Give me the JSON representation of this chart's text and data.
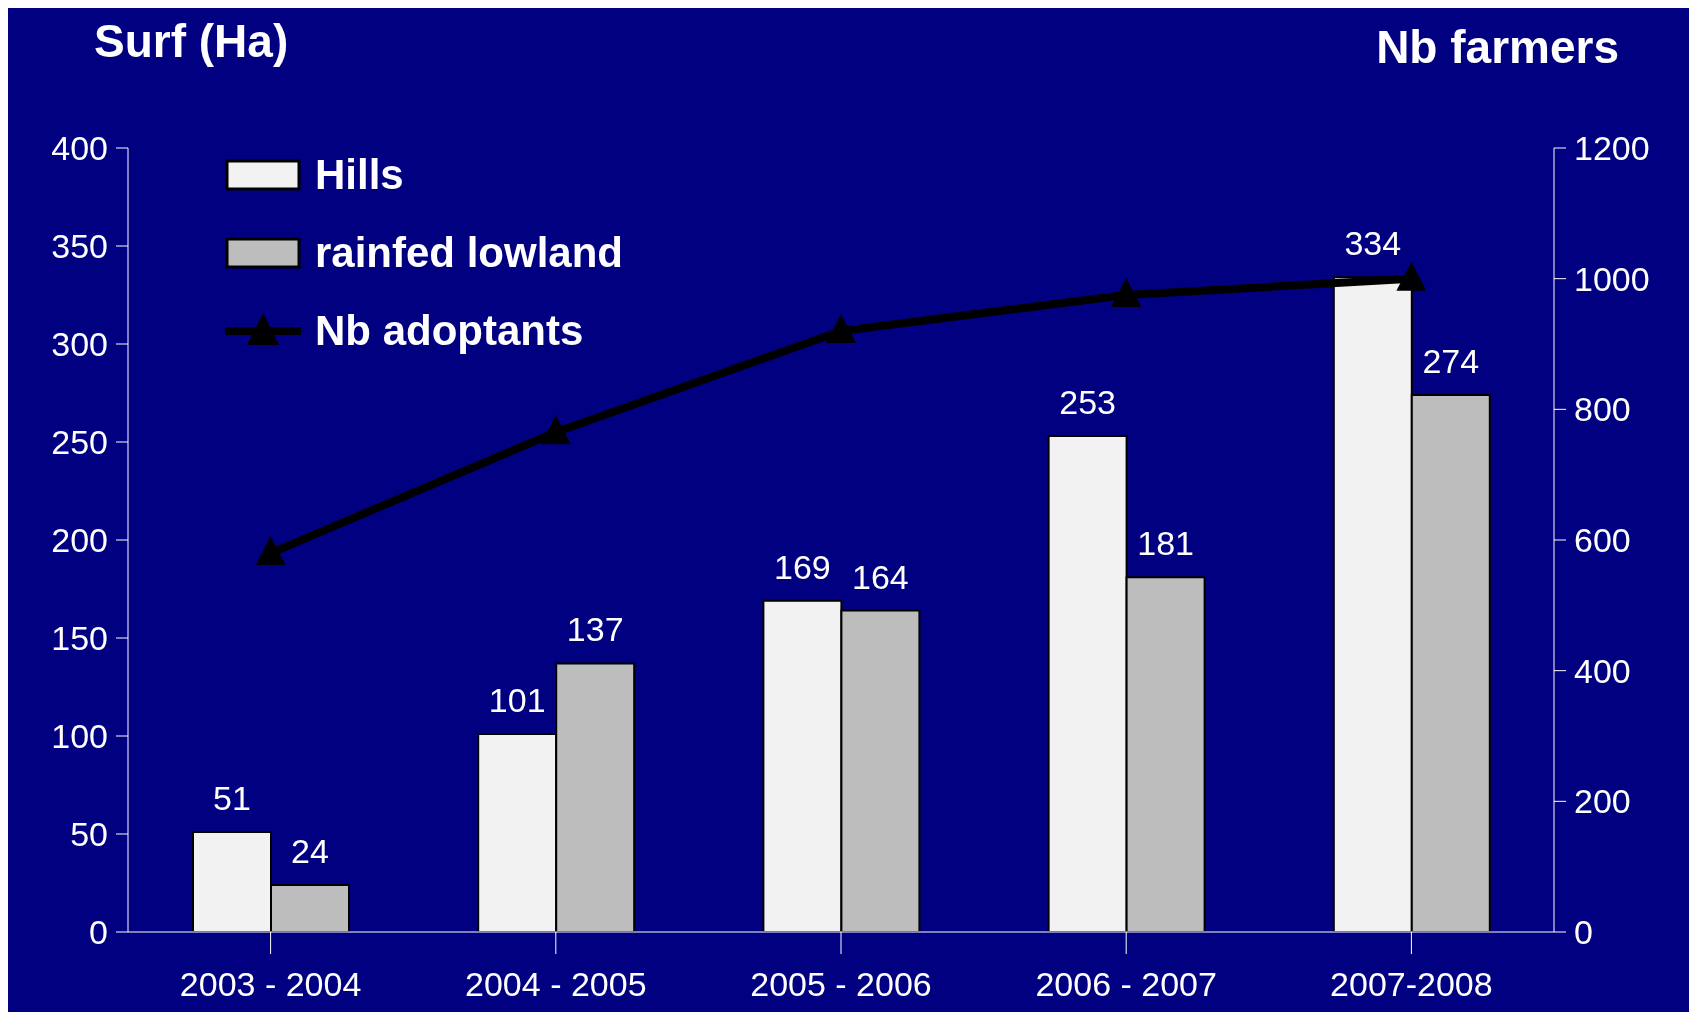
{
  "chart_data": {
    "type": "bar",
    "ylabel": "Surf (Ha)",
    "y2label": "Nb farmers",
    "categories": [
      "2003 - 2004",
      "2004 - 2005",
      "2005 - 2006",
      "2006 - 2007",
      "2007-2008"
    ],
    "series": [
      {
        "name": "Hills",
        "color": "#f2f2f2",
        "values": [
          51,
          101,
          169,
          253,
          334
        ],
        "value_labels": [
          "51",
          "101",
          "169",
          "253",
          "334"
        ]
      },
      {
        "name": "rainfed lowland",
        "color": "#bdbdbd",
        "values": [
          24,
          137,
          164,
          181,
          274
        ],
        "value_labels": [
          "24",
          "137",
          "164",
          "181",
          "274"
        ]
      },
      {
        "name": "Nb adoptants",
        "type": "line",
        "axis": "y2",
        "color": "#000000",
        "values": [
          580,
          765,
          920,
          975,
          1000
        ],
        "marker": "triangle"
      }
    ],
    "ylim": [
      0,
      400
    ],
    "yticks": [
      0,
      50,
      100,
      150,
      200,
      250,
      300,
      350,
      400
    ],
    "y2lim": [
      0,
      1200
    ],
    "y2ticks": [
      0,
      200,
      400,
      600,
      800,
      1000,
      1200
    ],
    "legend": "top left"
  }
}
